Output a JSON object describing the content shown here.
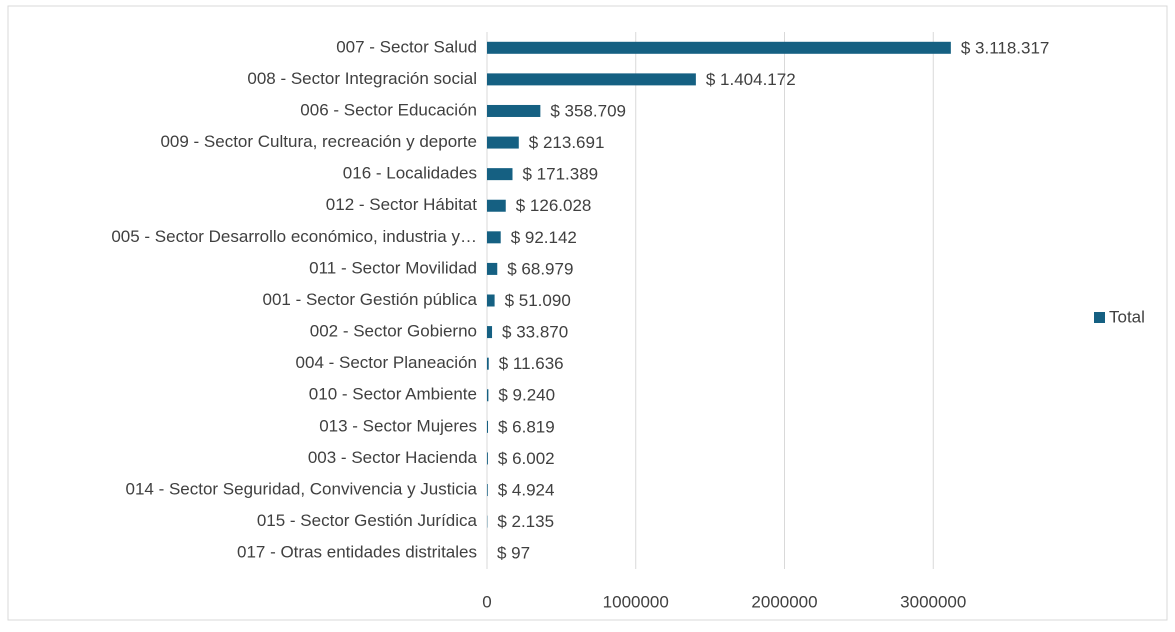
{
  "chart_data": {
    "type": "bar",
    "orientation": "horizontal",
    "categories": [
      "007 - Sector Salud",
      "008 - Sector Integración social",
      "006 - Sector Educación",
      "009 - Sector Cultura, recreación y deporte",
      "016 - Localidades",
      "012 - Sector Hábitat",
      "005 - Sector Desarrollo económico, industria y…",
      "011 - Sector Movilidad",
      "001 - Sector Gestión pública",
      "002 - Sector Gobierno",
      "004 - Sector Planeación",
      "010 - Sector Ambiente",
      "013 - Sector Mujeres",
      "003 - Sector Hacienda",
      "014 - Sector Seguridad, Convivencia y Justicia",
      "015 - Sector Gestión Jurídica",
      "017 - Otras entidades distritales"
    ],
    "series": [
      {
        "name": "Total",
        "color": "#156082",
        "values": [
          3118317,
          1404172,
          358709,
          213691,
          171389,
          126028,
          92142,
          68979,
          51090,
          33870,
          11636,
          9240,
          6819,
          6002,
          4924,
          2135,
          97
        ],
        "value_labels": [
          "$ 3.118.317",
          "$ 1.404.172",
          "$ 358.709",
          "$ 213.691",
          "$ 171.389",
          "$ 126.028",
          "$ 92.142",
          "$ 68.979",
          "$ 51.090",
          "$ 33.870",
          "$ 11.636",
          "$ 9.240",
          "$ 6.819",
          "$ 6.002",
          "$ 4.924",
          "$ 2.135",
          "$ 97"
        ]
      }
    ],
    "xlim": [
      0,
      4000000
    ],
    "xticks": [
      0,
      1000000,
      2000000,
      3000000
    ],
    "grid": true,
    "legend": "right"
  }
}
